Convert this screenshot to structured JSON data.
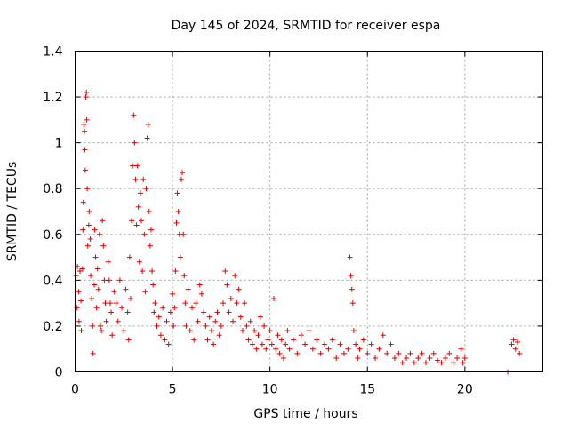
{
  "chart_data": {
    "type": "scatter",
    "title": "Day 145 of 2024, SRMTID for receiver espa",
    "xlabel": "GPS time / hours",
    "ylabel": "SRMTID / TECUs",
    "xlim": [
      0,
      24
    ],
    "ylim": [
      0,
      1.4
    ],
    "xticks": [
      "0",
      "5",
      "10",
      "15",
      "20"
    ],
    "yticks": [
      "0",
      "0.2",
      "0.4",
      "0.6",
      "0.8",
      "1",
      "1.2",
      "1.4"
    ],
    "grid": true,
    "marker": "+",
    "color": "#e00000",
    "series": [
      {
        "name": "SRMTID",
        "points": [
          [
            0.05,
            0.42
          ],
          [
            0.1,
            0.28
          ],
          [
            0.12,
            0.46
          ],
          [
            0.18,
            0.35
          ],
          [
            0.2,
            0.22
          ],
          [
            0.25,
            0.44
          ],
          [
            0.3,
            0.31
          ],
          [
            0.32,
            0.18
          ],
          [
            0.38,
            0.45
          ],
          [
            0.4,
            0.62
          ],
          [
            0.42,
            0.74
          ],
          [
            0.45,
            1.08
          ],
          [
            0.48,
            1.05
          ],
          [
            0.5,
            0.97
          ],
          [
            0.52,
            0.88
          ],
          [
            0.55,
            1.2
          ],
          [
            0.58,
            1.22
          ],
          [
            0.6,
            1.1
          ],
          [
            0.62,
            0.8
          ],
          [
            0.65,
            0.55
          ],
          [
            0.7,
            0.64
          ],
          [
            0.72,
            0.7
          ],
          [
            0.78,
            0.58
          ],
          [
            0.8,
            0.42
          ],
          [
            0.85,
            0.32
          ],
          [
            0.9,
            0.2
          ],
          [
            0.92,
            0.08
          ],
          [
            0.98,
            0.38
          ],
          [
            1.0,
            0.62
          ],
          [
            1.05,
            0.5
          ],
          [
            1.1,
            0.28
          ],
          [
            1.15,
            0.45
          ],
          [
            1.2,
            0.36
          ],
          [
            1.25,
            0.6
          ],
          [
            1.3,
            0.2
          ],
          [
            1.35,
            0.18
          ],
          [
            1.4,
            0.66
          ],
          [
            1.45,
            0.55
          ],
          [
            1.5,
            0.4
          ],
          [
            1.55,
            0.3
          ],
          [
            1.6,
            0.22
          ],
          [
            1.7,
            0.48
          ],
          [
            1.75,
            0.4
          ],
          [
            1.8,
            0.3
          ],
          [
            1.85,
            0.26
          ],
          [
            1.9,
            0.16
          ],
          [
            2.0,
            0.35
          ],
          [
            2.1,
            0.3
          ],
          [
            2.2,
            0.22
          ],
          [
            2.3,
            0.4
          ],
          [
            2.4,
            0.28
          ],
          [
            2.5,
            0.18
          ],
          [
            2.6,
            0.36
          ],
          [
            2.7,
            0.26
          ],
          [
            2.75,
            0.14
          ],
          [
            2.8,
            0.5
          ],
          [
            2.85,
            0.32
          ],
          [
            2.9,
            0.66
          ],
          [
            2.95,
            0.9
          ],
          [
            3.0,
            1.12
          ],
          [
            3.05,
            1.0
          ],
          [
            3.1,
            0.84
          ],
          [
            3.15,
            0.64
          ],
          [
            3.2,
            0.9
          ],
          [
            3.25,
            0.72
          ],
          [
            3.3,
            0.48
          ],
          [
            3.35,
            0.78
          ],
          [
            3.4,
            0.66
          ],
          [
            3.45,
            0.44
          ],
          [
            3.5,
            0.84
          ],
          [
            3.55,
            0.6
          ],
          [
            3.6,
            0.35
          ],
          [
            3.65,
            0.8
          ],
          [
            3.7,
            1.02
          ],
          [
            3.75,
            1.08
          ],
          [
            3.8,
            0.7
          ],
          [
            3.85,
            0.55
          ],
          [
            3.9,
            0.62
          ],
          [
            3.95,
            0.44
          ],
          [
            4.0,
            0.38
          ],
          [
            4.05,
            0.26
          ],
          [
            4.1,
            0.3
          ],
          [
            4.2,
            0.2
          ],
          [
            4.3,
            0.24
          ],
          [
            4.4,
            0.16
          ],
          [
            4.5,
            0.28
          ],
          [
            4.6,
            0.14
          ],
          [
            4.7,
            0.22
          ],
          [
            4.8,
            0.12
          ],
          [
            4.9,
            0.26
          ],
          [
            5.0,
            0.34
          ],
          [
            5.05,
            0.2
          ],
          [
            5.1,
            0.28
          ],
          [
            5.15,
            0.44
          ],
          [
            5.2,
            0.65
          ],
          [
            5.25,
            0.78
          ],
          [
            5.3,
            0.7
          ],
          [
            5.35,
            0.6
          ],
          [
            5.4,
            0.5
          ],
          [
            5.45,
            0.84
          ],
          [
            5.5,
            0.87
          ],
          [
            5.55,
            0.6
          ],
          [
            5.6,
            0.42
          ],
          [
            5.65,
            0.3
          ],
          [
            5.7,
            0.2
          ],
          [
            5.8,
            0.36
          ],
          [
            5.9,
            0.18
          ],
          [
            6.0,
            0.28
          ],
          [
            6.1,
            0.14
          ],
          [
            6.2,
            0.3
          ],
          [
            6.3,
            0.22
          ],
          [
            6.4,
            0.38
          ],
          [
            6.5,
            0.34
          ],
          [
            6.6,
            0.26
          ],
          [
            6.7,
            0.2
          ],
          [
            6.8,
            0.14
          ],
          [
            6.9,
            0.24
          ],
          [
            7.0,
            0.18
          ],
          [
            7.1,
            0.12
          ],
          [
            7.2,
            0.22
          ],
          [
            7.3,
            0.26
          ],
          [
            7.4,
            0.16
          ],
          [
            7.5,
            0.2
          ],
          [
            7.6,
            0.3
          ],
          [
            7.7,
            0.44
          ],
          [
            7.8,
            0.38
          ],
          [
            7.9,
            0.26
          ],
          [
            8.0,
            0.32
          ],
          [
            8.1,
            0.22
          ],
          [
            8.2,
            0.42
          ],
          [
            8.3,
            0.3
          ],
          [
            8.4,
            0.36
          ],
          [
            8.5,
            0.24
          ],
          [
            8.6,
            0.18
          ],
          [
            8.7,
            0.3
          ],
          [
            8.8,
            0.2
          ],
          [
            8.9,
            0.14
          ],
          [
            9.0,
            0.22
          ],
          [
            9.1,
            0.12
          ],
          [
            9.2,
            0.18
          ],
          [
            9.3,
            0.1
          ],
          [
            9.4,
            0.16
          ],
          [
            9.5,
            0.24
          ],
          [
            9.6,
            0.12
          ],
          [
            9.7,
            0.2
          ],
          [
            9.8,
            0.1
          ],
          [
            9.9,
            0.14
          ],
          [
            10.0,
            0.18
          ],
          [
            10.1,
            0.12
          ],
          [
            10.2,
            0.32
          ],
          [
            10.3,
            0.1
          ],
          [
            10.4,
            0.16
          ],
          [
            10.5,
            0.08
          ],
          [
            10.6,
            0.14
          ],
          [
            10.7,
            0.06
          ],
          [
            10.8,
            0.12
          ],
          [
            10.9,
            0.18
          ],
          [
            11.0,
            0.1
          ],
          [
            11.2,
            0.14
          ],
          [
            11.4,
            0.08
          ],
          [
            11.6,
            0.16
          ],
          [
            11.8,
            0.12
          ],
          [
            12.0,
            0.18
          ],
          [
            12.2,
            0.1
          ],
          [
            12.4,
            0.14
          ],
          [
            12.6,
            0.08
          ],
          [
            12.8,
            0.12
          ],
          [
            13.0,
            0.1
          ],
          [
            13.2,
            0.14
          ],
          [
            13.4,
            0.06
          ],
          [
            13.6,
            0.12
          ],
          [
            13.8,
            0.08
          ],
          [
            14.0,
            0.1
          ],
          [
            14.1,
            0.5
          ],
          [
            14.15,
            0.42
          ],
          [
            14.2,
            0.36
          ],
          [
            14.25,
            0.3
          ],
          [
            14.3,
            0.18
          ],
          [
            14.4,
            0.12
          ],
          [
            14.5,
            0.06
          ],
          [
            14.6,
            0.1
          ],
          [
            14.8,
            0.14
          ],
          [
            15.0,
            0.08
          ],
          [
            15.2,
            0.12
          ],
          [
            15.4,
            0.06
          ],
          [
            15.6,
            0.1
          ],
          [
            15.8,
            0.16
          ],
          [
            16.0,
            0.08
          ],
          [
            16.2,
            0.12
          ],
          [
            16.4,
            0.06
          ],
          [
            16.6,
            0.08
          ],
          [
            16.8,
            0.04
          ],
          [
            17.0,
            0.06
          ],
          [
            17.2,
            0.08
          ],
          [
            17.4,
            0.04
          ],
          [
            17.6,
            0.06
          ],
          [
            17.8,
            0.08
          ],
          [
            18.0,
            0.04
          ],
          [
            18.2,
            0.06
          ],
          [
            18.4,
            0.08
          ],
          [
            18.6,
            0.05
          ],
          [
            18.8,
            0.04
          ],
          [
            19.0,
            0.06
          ],
          [
            19.2,
            0.08
          ],
          [
            19.4,
            0.04
          ],
          [
            19.6,
            0.06
          ],
          [
            19.8,
            0.1
          ],
          [
            19.9,
            0.04
          ],
          [
            20.0,
            0.06
          ],
          [
            22.2,
            0.0
          ],
          [
            22.4,
            0.12
          ],
          [
            22.5,
            0.14
          ],
          [
            22.6,
            0.1
          ],
          [
            22.7,
            0.13
          ],
          [
            22.8,
            0.08
          ]
        ]
      }
    ]
  }
}
